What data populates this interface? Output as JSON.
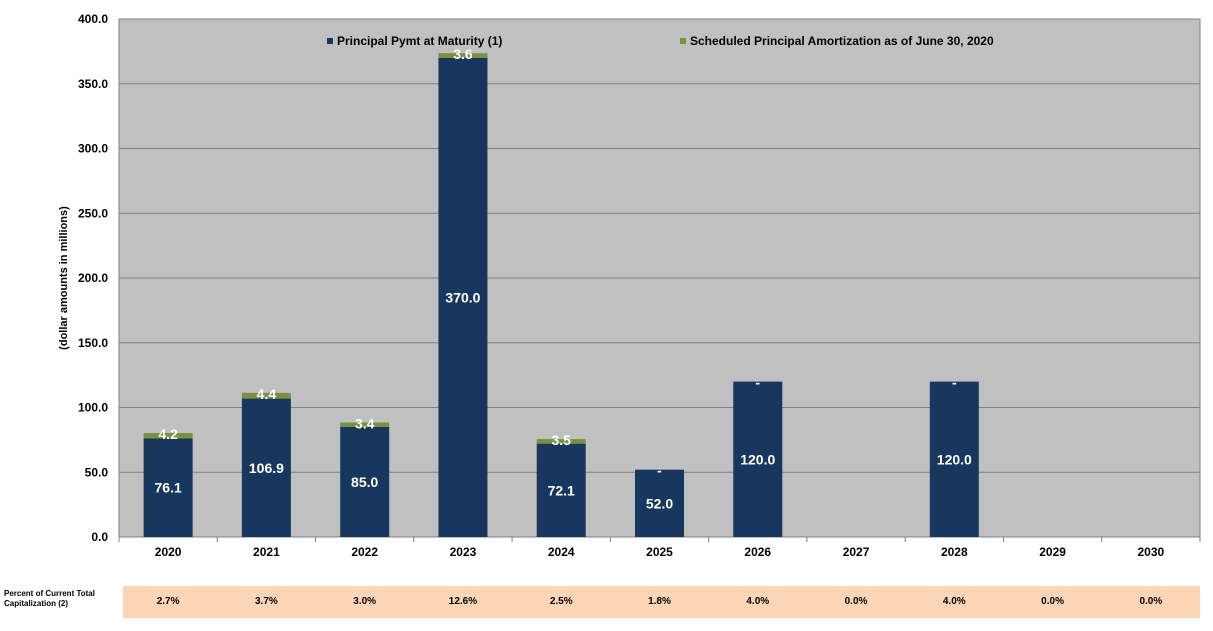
{
  "chart_data": {
    "type": "bar",
    "stacked": true,
    "categories": [
      "2020",
      "2021",
      "2022",
      "2023",
      "2024",
      "2025",
      "2026",
      "2027",
      "2028",
      "2029",
      "2030"
    ],
    "series": [
      {
        "name": "Principal Pymt at Maturity (1)",
        "color": "#17375e",
        "values": [
          76.1,
          106.9,
          85.0,
          370.0,
          72.1,
          52.0,
          120.0,
          0,
          120.0,
          0,
          0
        ],
        "labels": [
          "76.1",
          "106.9",
          "85.0",
          "370.0",
          "72.1",
          "52.0",
          "120.0",
          "",
          "120.0",
          "",
          ""
        ]
      },
      {
        "name": "Scheduled Principal Amortization as of June 30, 2020",
        "color": "#77933c",
        "values": [
          4.2,
          4.4,
          3.4,
          3.6,
          3.5,
          0,
          0,
          0,
          0,
          0,
          0
        ],
        "labels": [
          "4.2",
          "4.4",
          "3.4",
          "3.6",
          "3.5",
          "-",
          "-",
          "",
          "-",
          "",
          ""
        ]
      }
    ],
    "ylabel": "(dollar amounts in millions)",
    "ylim": [
      0,
      400
    ],
    "yticks": [
      "0.0",
      "50.0",
      "100.0",
      "150.0",
      "200.0",
      "250.0",
      "300.0",
      "350.0",
      "400.0"
    ],
    "grid": true,
    "legend_position": "top",
    "plot_background": "#c0c0c0",
    "table": {
      "title": "Percent of Current Total Capitalization  (2)",
      "values": [
        "2.7%",
        "3.7%",
        "3.0%",
        "12.6%",
        "2.5%",
        "1.8%",
        "4.0%",
        "0.0%",
        "4.0%",
        "0.0%",
        "0.0%"
      ],
      "background": "#fbd5b5"
    }
  }
}
